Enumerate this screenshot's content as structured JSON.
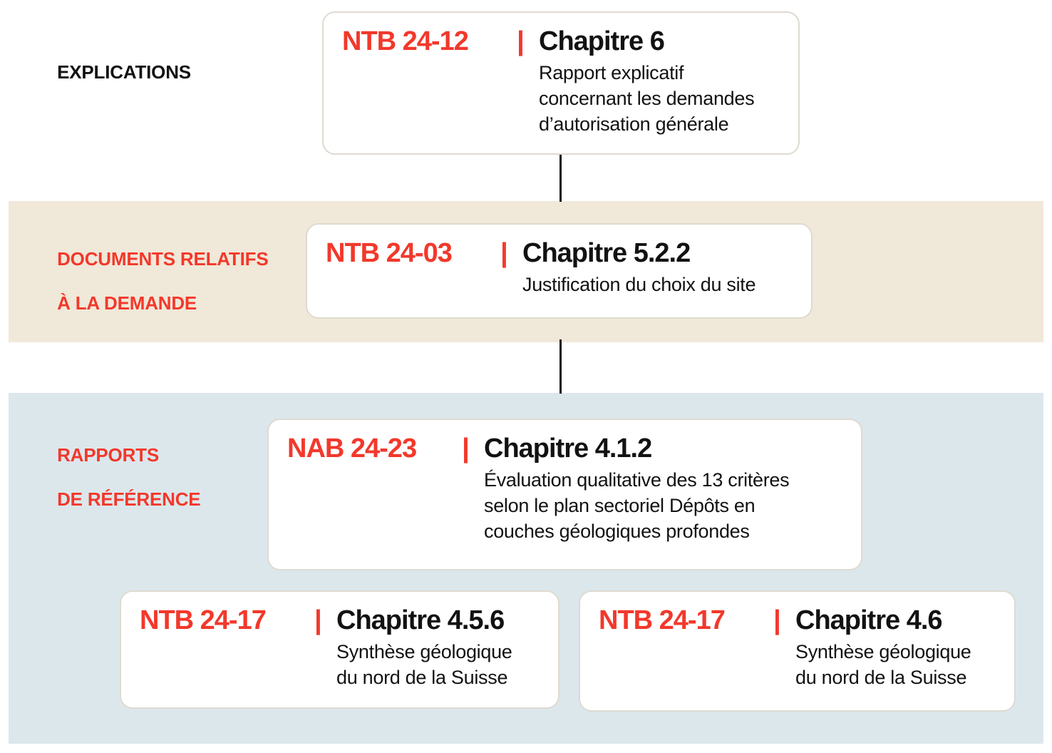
{
  "palette": {
    "red": "#F2382B",
    "beige_band": "#F0E8D9",
    "blue_band": "#DCE7EC",
    "card_border": "#DFDAD0",
    "text_black": "#121212"
  },
  "labels": {
    "explications": {
      "line1": "EXPLICATIONS"
    },
    "demande": {
      "line1": "DOCUMENTS RELATIFS",
      "line2": "À LA DEMANDE"
    },
    "reference": {
      "line1": "RAPPORTS",
      "line2": "DE RÉFÉRENCE"
    }
  },
  "cards": {
    "c1": {
      "code": "NTB 24-12",
      "sep": "|",
      "chapter": "Chapitre 6",
      "subtitle": [
        "Rapport explicatif",
        "concernant les demandes",
        "d’autorisation générale"
      ]
    },
    "c2": {
      "code": "NTB 24-03",
      "sep": "|",
      "chapter": "Chapitre 5.2.2",
      "subtitle": [
        "Justification du choix du site"
      ]
    },
    "c3": {
      "code": "NAB 24-23",
      "sep": "|",
      "chapter": "Chapitre 4.1.2",
      "subtitle": [
        "Évaluation qualitative des 13 critères",
        "selon le plan sectoriel Dépôts en",
        "couches géologiques profondes"
      ]
    },
    "c4": {
      "code": "NTB 24-17",
      "sep": "|",
      "chapter": "Chapitre 4.5.6",
      "subtitle": [
        "Synthèse géologique",
        "du nord de la Suisse"
      ]
    },
    "c5": {
      "code": "NTB 24-17",
      "sep": "|",
      "chapter": "Chapitre 4.6",
      "subtitle": [
        "Synthèse géologique",
        "du nord de la Suisse"
      ]
    }
  }
}
